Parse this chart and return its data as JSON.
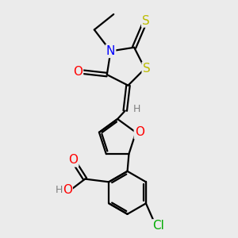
{
  "bg_color": "#ebebeb",
  "atom_colors": {
    "C": "#000000",
    "H": "#7f7f7f",
    "N": "#0000ff",
    "O": "#ff0000",
    "S": "#bbbb00",
    "Cl": "#00aa00"
  },
  "bond_color": "#000000",
  "bond_width": 1.6,
  "font_size_atom": 11,
  "font_size_h": 9
}
